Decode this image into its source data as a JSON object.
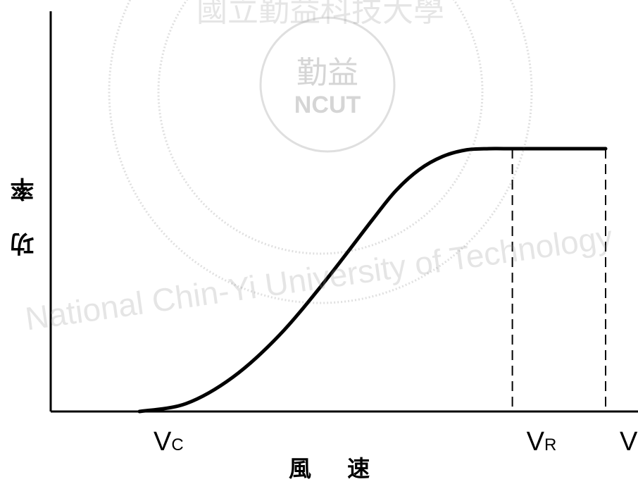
{
  "chart_data": {
    "type": "line",
    "title": "",
    "xlabel": "風 速",
    "ylabel": "功 率",
    "x_ticks": [
      {
        "main": "V",
        "sub": "C",
        "x": 0.0
      },
      {
        "main": "V",
        "sub": "R",
        "x": 0.8
      },
      {
        "main": "V",
        "sub": "F",
        "x": 1.0
      }
    ],
    "series": [
      {
        "x": [
          0.0,
          0.1,
          0.2,
          0.3,
          0.4,
          0.5,
          0.55,
          0.6,
          0.65,
          0.7,
          0.75,
          0.8,
          1.0
        ],
        "y": [
          0.0,
          0.03,
          0.13,
          0.29,
          0.5,
          0.73,
          0.84,
          0.92,
          0.97,
          0.995,
          1.0,
          1.0,
          1.0
        ],
        "color": "#000000"
      }
    ],
    "ref_lines": [
      {
        "x": 0.8,
        "style": "dashed"
      },
      {
        "x": 1.0,
        "style": "dashed"
      }
    ],
    "grid": false
  },
  "watermark": {
    "top_text": "國立勤益科技大學",
    "emblem_text": "勤益",
    "emblem_sub": "NCUT",
    "ring_text": "National Chin-Yi University of Technology"
  }
}
